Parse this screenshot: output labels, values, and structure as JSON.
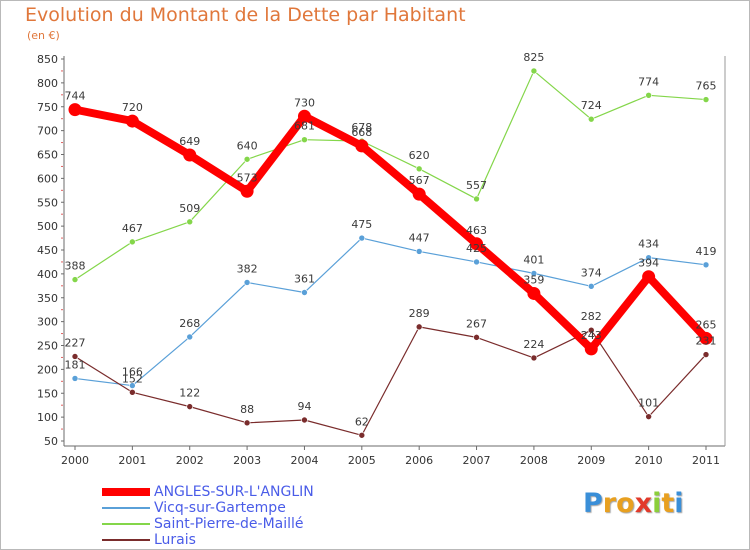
{
  "title": "Evolution du Montant de la Dette par Habitant",
  "subtitle": "(en €)",
  "chart_data": {
    "type": "line",
    "title": "Evolution du Montant de la Dette par Habitant",
    "subtitle": "(en €)",
    "xlabel": "",
    "ylabel": "",
    "x": [
      "2000",
      "2001",
      "2002",
      "2003",
      "2004",
      "2005",
      "2006",
      "2007",
      "2008",
      "2009",
      "2010",
      "2011"
    ],
    "ylim": [
      50,
      850
    ],
    "yticks": [
      50,
      100,
      150,
      200,
      250,
      300,
      350,
      400,
      450,
      500,
      550,
      600,
      650,
      700,
      750,
      800,
      850
    ],
    "grid": false,
    "legend_position": "bottom-left",
    "series": [
      {
        "name": "ANGLES-SUR-L'ANGLIN",
        "color": "#ff0000",
        "values": [
          744,
          720,
          649,
          573,
          730,
          668,
          567,
          463,
          359,
          243,
          394,
          265
        ]
      },
      {
        "name": "Vicq-sur-Gartempe",
        "color": "#5aa0d8",
        "values": [
          181,
          166,
          268,
          382,
          361,
          475,
          447,
          425,
          401,
          374,
          434,
          419
        ]
      },
      {
        "name": "Saint-Pierre-de-Maillé",
        "color": "#84d64a",
        "values": [
          388,
          467,
          509,
          640,
          681,
          678,
          620,
          557,
          825,
          724,
          774,
          765
        ]
      },
      {
        "name": "Lurais",
        "color": "#7a2c2c",
        "values": [
          227,
          152,
          122,
          88,
          94,
          62,
          289,
          267,
          224,
          282,
          101,
          231
        ]
      }
    ]
  },
  "logo": {
    "letters": [
      "P",
      "r",
      "o",
      "x",
      "i",
      "t",
      "i"
    ],
    "colors": [
      "#3a8fd8",
      "#e8a020",
      "#e8a020",
      "#e23a2a",
      "#8ccf3a",
      "#e8a020",
      "#3a8fd8"
    ]
  }
}
